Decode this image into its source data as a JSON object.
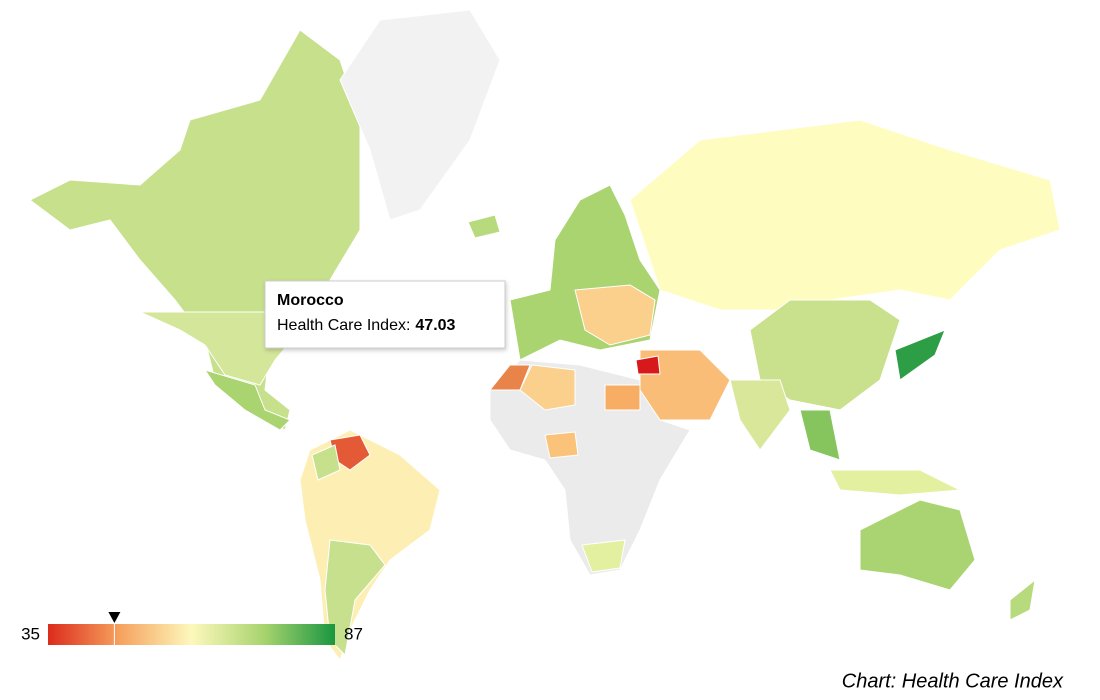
{
  "chart_data": {
    "type": "geo",
    "footer": "Chart: Health Care Index",
    "color_axis": {
      "min": 35,
      "max": 87,
      "colors": [
        "#dc2b1c",
        "#f6a25e",
        "#fdf8bc",
        "#a9d46f",
        "#1a9641"
      ]
    },
    "tooltip": {
      "country": "Morocco",
      "label": "Health Care Index:",
      "value": 47.03
    }
  }
}
